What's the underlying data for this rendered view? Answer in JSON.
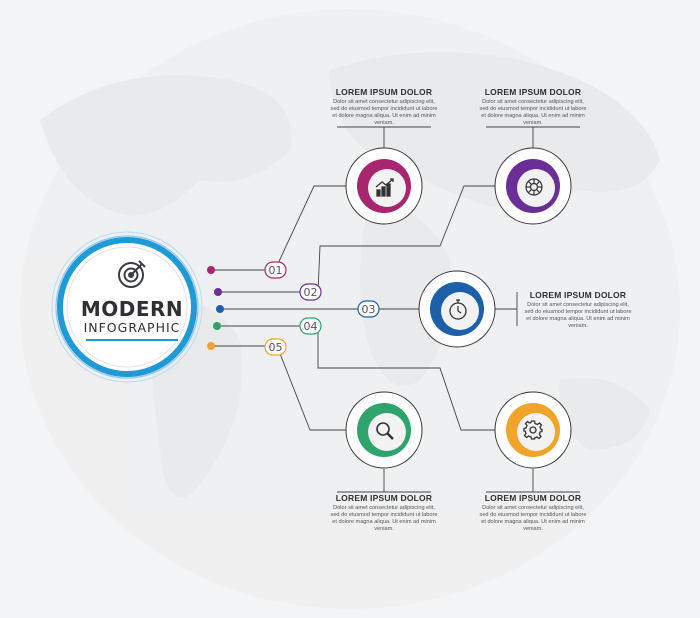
{
  "center": {
    "title": "MODERN",
    "subtitle": "INFOGRAPHIC",
    "icon": "target-icon",
    "color": "#1e9ad6"
  },
  "steps": [
    {
      "number": "01",
      "color": "#a8266e",
      "icon": "growth-chart-icon",
      "title": "LOREM IPSUM DOLOR",
      "lines": [
        "Dolor sit amet consectetur adipiscing elit,",
        "sed do eiusmod tempor incididunt ut labore",
        "et dolore magna aliqua. Ut enim ad minim",
        "veniam."
      ]
    },
    {
      "number": "02",
      "color": "#6b2d96",
      "icon": "brain-icon",
      "title": "LOREM IPSUM DOLOR",
      "lines": [
        "Dolor sit amet consectetur adipiscing elit,",
        "sed do eiusmod tempor incididunt ut labore",
        "et dolore magna aliqua. Ut enim ad minim",
        "veniam."
      ]
    },
    {
      "number": "03",
      "color": "#1d5fa8",
      "icon": "stopwatch-icon",
      "title": "LOREM IPSUM DOLOR",
      "lines": [
        "Dolor sit amet consectetur adipiscing elit,",
        "sed do eiusmod tempor incididunt ut labore",
        "et dolore magna aliqua. Ut enim ad minim",
        "veniam."
      ]
    },
    {
      "number": "04",
      "color": "#2ea36b",
      "icon": "search-icon",
      "title": "LOREM IPSUM DOLOR",
      "lines": [
        "Dolor sit amet consectetur adipiscing elit,",
        "sed do eiusmod tempor incididunt ut labore",
        "et dolore magna aliqua. Ut enim ad minim",
        "veniam."
      ]
    },
    {
      "number": "05",
      "color": "#f0a52a",
      "icon": "gear-icon",
      "title": "LOREM IPSUM DOLOR",
      "lines": [
        "Dolor sit amet consectetur adipiscing elit,",
        "sed do eiusmod tempor incididunt ut labore",
        "et dolore magna aliqua. Ut enim ad minim",
        "veniam."
      ]
    }
  ]
}
